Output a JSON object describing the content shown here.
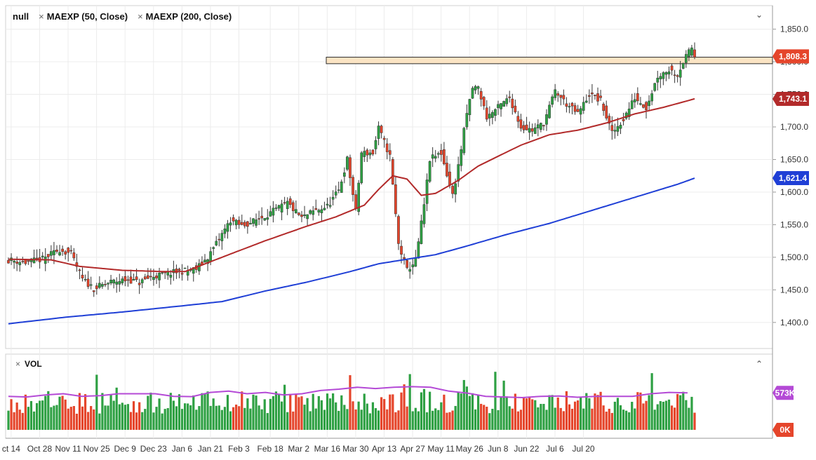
{
  "legend": {
    "symbol": "null",
    "indicator_1": "MAEXP (50, Close)",
    "indicator_2": "MAEXP (200, Close)",
    "close_glyph": "×"
  },
  "volume_legend": {
    "label": "VOL",
    "close_glyph": "×"
  },
  "colors": {
    "up": "#2ea043",
    "down": "#e5452b",
    "ma50": "#b22a2a",
    "ma200": "#1f3fd6",
    "vol_ma": "#b44ad6",
    "zone_fill": "#fbe4c4",
    "zone_stroke": "#2b2b2b",
    "badge_last": "#e5452b",
    "badge_ma50": "#b22a2a",
    "badge_ma200": "#1f3fd6",
    "badge_vol": "#b44ad6"
  },
  "icons": {
    "collapse": "chevron-down-icon",
    "expand": "chevron-up-icon"
  },
  "chart_data": {
    "type": "candlestick",
    "x_tick_labels": [
      "ct 14",
      "Oct 28",
      "Nov 11",
      "Nov 25",
      "Dec 9",
      "Dec 23",
      "Jan 6",
      "Jan 21",
      "Feb 3",
      "Feb 18",
      "Mar 2",
      "Mar 16",
      "Mar 30",
      "Apr 13",
      "Apr 27",
      "May 11",
      "May 26",
      "Jun 8",
      "Jun 22",
      "Jul 6",
      "Jul 20"
    ],
    "y_tick_labels": [
      "1,850.0",
      "1,800.0",
      "1,750.0",
      "1,700.0",
      "1,650.0",
      "1,600.0",
      "1,550.0",
      "1,500.0",
      "1,450.0",
      "1,400.0"
    ],
    "y_ticks": [
      1850,
      1800,
      1750,
      1700,
      1650,
      1600,
      1550,
      1500,
      1450,
      1400
    ],
    "ylim": [
      1360,
      1870
    ],
    "price_labels": {
      "last": "1,808.3",
      "ma50": "1,743.1",
      "ma200": "1,621.4"
    },
    "price_label_values": {
      "last": 1808.3,
      "ma50": 1743.1,
      "ma200": 1621.4
    },
    "resistance_zone": {
      "low": 1797,
      "high": 1807
    },
    "series": [
      {
        "name": "MAEXP (50, Close)",
        "kind": "ma",
        "anchors": [
          [
            0,
            1497
          ],
          [
            15,
            1496
          ],
          [
            25,
            1486
          ],
          [
            40,
            1480
          ],
          [
            55,
            1478
          ],
          [
            62,
            1478
          ],
          [
            75,
            1500
          ],
          [
            90,
            1525
          ],
          [
            105,
            1548
          ],
          [
            115,
            1562
          ],
          [
            125,
            1580
          ],
          [
            130,
            1604
          ],
          [
            135,
            1625
          ],
          [
            140,
            1620
          ],
          [
            145,
            1595
          ],
          [
            150,
            1598
          ],
          [
            158,
            1618
          ],
          [
            165,
            1640
          ],
          [
            172,
            1655
          ],
          [
            180,
            1672
          ],
          [
            190,
            1688
          ],
          [
            200,
            1695
          ],
          [
            210,
            1706
          ],
          [
            220,
            1720
          ],
          [
            230,
            1730
          ],
          [
            241,
            1743.1
          ]
        ]
      },
      {
        "name": "MAEXP (200, Close)",
        "kind": "ma",
        "anchors": [
          [
            0,
            1398
          ],
          [
            20,
            1408
          ],
          [
            40,
            1416
          ],
          [
            60,
            1425
          ],
          [
            75,
            1432
          ],
          [
            90,
            1448
          ],
          [
            105,
            1462
          ],
          [
            120,
            1478
          ],
          [
            130,
            1490
          ],
          [
            140,
            1497
          ],
          [
            150,
            1504
          ],
          [
            160,
            1516
          ],
          [
            175,
            1535
          ],
          [
            190,
            1552
          ],
          [
            205,
            1572
          ],
          [
            220,
            1592
          ],
          [
            235,
            1612
          ],
          [
            241,
            1621.4
          ]
        ]
      },
      {
        "name": "close",
        "kind": "price_path",
        "anchors": [
          [
            0,
            1496
          ],
          [
            6,
            1492
          ],
          [
            12,
            1497
          ],
          [
            18,
            1512
          ],
          [
            22,
            1505
          ],
          [
            26,
            1466
          ],
          [
            30,
            1452
          ],
          [
            36,
            1462
          ],
          [
            42,
            1466
          ],
          [
            46,
            1461
          ],
          [
            50,
            1470
          ],
          [
            56,
            1475
          ],
          [
            60,
            1478
          ],
          [
            66,
            1482
          ],
          [
            70,
            1500
          ],
          [
            74,
            1528
          ],
          [
            78,
            1557
          ],
          [
            82,
            1548
          ],
          [
            86,
            1555
          ],
          [
            92,
            1568
          ],
          [
            98,
            1583
          ],
          [
            103,
            1560
          ],
          [
            107,
            1570
          ],
          [
            112,
            1578
          ],
          [
            116,
            1602
          ],
          [
            119,
            1650
          ],
          [
            122,
            1570
          ],
          [
            124,
            1660
          ],
          [
            128,
            1660
          ],
          [
            130,
            1698
          ],
          [
            134,
            1655
          ],
          [
            137,
            1520
          ],
          [
            140,
            1480
          ],
          [
            143,
            1495
          ],
          [
            146,
            1580
          ],
          [
            148,
            1650
          ],
          [
            152,
            1660
          ],
          [
            156,
            1595
          ],
          [
            158,
            1640
          ],
          [
            161,
            1720
          ],
          [
            163,
            1760
          ],
          [
            165,
            1760
          ],
          [
            168,
            1715
          ],
          [
            172,
            1730
          ],
          [
            176,
            1745
          ],
          [
            180,
            1700
          ],
          [
            184,
            1695
          ],
          [
            188,
            1706
          ],
          [
            192,
            1755
          ],
          [
            196,
            1735
          ],
          [
            200,
            1720
          ],
          [
            204,
            1750
          ],
          [
            208,
            1740
          ],
          [
            212,
            1690
          ],
          [
            216,
            1712
          ],
          [
            220,
            1745
          ],
          [
            224,
            1730
          ],
          [
            228,
            1778
          ],
          [
            232,
            1788
          ],
          [
            235,
            1780
          ],
          [
            237,
            1800
          ],
          [
            240,
            1822
          ],
          [
            241,
            1808
          ]
        ]
      },
      {
        "name": "VOL",
        "kind": "volume",
        "ylim": [
          0,
          1000
        ]
      },
      {
        "name": "VOL MA",
        "kind": "volume_ma",
        "values_k": [
          520,
          510,
          540,
          560,
          520,
          530,
          560,
          560,
          560,
          520,
          515,
          580,
          600,
          560,
          580,
          540,
          560,
          610,
          630,
          660,
          640,
          660,
          670,
          660,
          600,
          570,
          520,
          510,
          500,
          520,
          525,
          505,
          520,
          520,
          520,
          560,
          580,
          573
        ]
      }
    ],
    "volume_label_top": "573K",
    "volume_label_bottom": "0K",
    "volume_ylim": [
      0,
      1000
    ]
  }
}
